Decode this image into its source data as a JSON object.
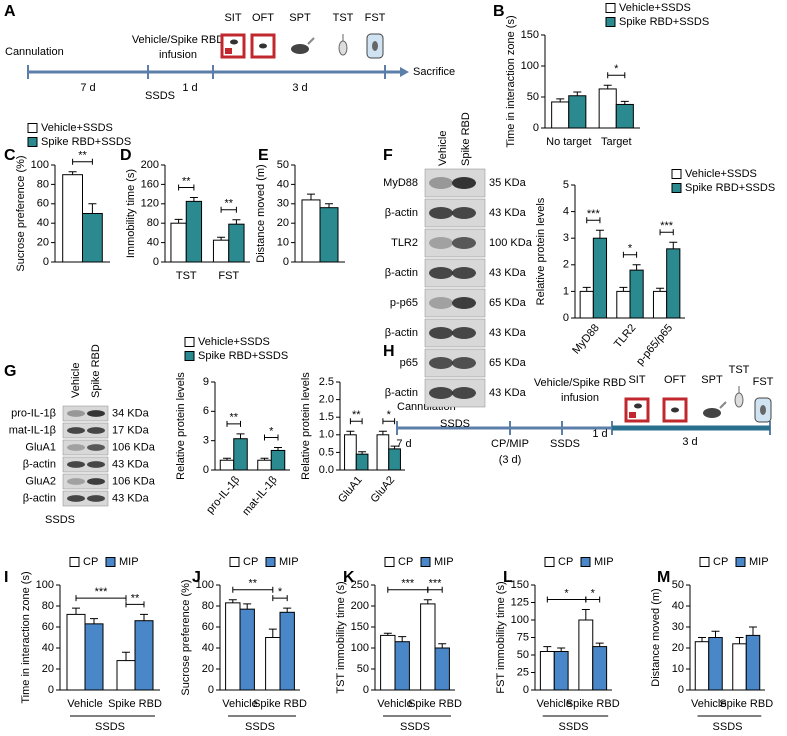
{
  "panel_letters": [
    "A",
    "B",
    "C",
    "D",
    "E",
    "F",
    "G",
    "H",
    "I",
    "J",
    "K",
    "L",
    "M"
  ],
  "timelines": [
    {
      "start": "Cannulation",
      "infusion": [
        "Vehicle/Spike RBD",
        "infusion"
      ],
      "stress": "SSDS",
      "tests": [
        "SIT",
        "OFT",
        "SPT",
        "TST",
        "FST"
      ],
      "intervals": [
        "7 d",
        "1 d",
        "3 d"
      ],
      "end": "Sacrifice"
    },
    {
      "start": "Cannulation",
      "treatment": "CP/MIP",
      "treatment_duration": "(3 d)",
      "infusion": [
        "Vehicle/Spike RBD",
        "infusion"
      ],
      "stress": "SSDS",
      "tests": [
        "SIT",
        "OFT",
        "SPT",
        "TST",
        "FST"
      ],
      "intervals": [
        "7 d",
        "1 d",
        "3 d"
      ]
    }
  ],
  "blots": [
    {
      "lanes": [
        "Vehicle",
        "Spike RBD"
      ],
      "rows": [
        {
          "protein": "MyD88",
          "size": "35 KDa"
        },
        {
          "protein": "β-actin",
          "size": "43 KDa"
        },
        {
          "protein": "TLR2",
          "size": "100 KDa"
        },
        {
          "protein": "β-actin",
          "size": "43 KDa"
        },
        {
          "protein": "p-p65",
          "size": "65 KDa"
        },
        {
          "protein": "β-actin",
          "size": "43 KDa"
        },
        {
          "protein": "p65",
          "size": "65 KDa"
        },
        {
          "protein": "β-actin",
          "size": "43 KDa"
        }
      ],
      "condition": "SSDS"
    },
    {
      "lanes": [
        "Vehicle",
        "Spike RBD"
      ],
      "rows": [
        {
          "protein": "pro-IL-1β",
          "size": "34 KDa"
        },
        {
          "protein": "mat-IL-1β",
          "size": "17 KDa"
        },
        {
          "protein": "GluA1",
          "size": "106 KDa"
        },
        {
          "protein": "β-actin",
          "size": "43 KDa"
        },
        {
          "protein": "GluA2",
          "size": "106 KDa"
        },
        {
          "protein": "β-actin",
          "size": "43 KDa"
        }
      ],
      "condition": "SSDS"
    }
  ],
  "chart_data": [
    {
      "type": "bar",
      "ylabel": "Time in interaction zone (s)",
      "categories": [
        "No target",
        "Target"
      ],
      "series": [
        {
          "name": "Vehicle+SSDS",
          "color": "#ffffff",
          "values": [
            42,
            63
          ],
          "errors": [
            5,
            6
          ]
        },
        {
          "name": "Spike RBD+SSDS",
          "color": "#2b8a8f",
          "values": [
            52,
            38
          ],
          "errors": [
            6,
            5
          ]
        }
      ],
      "ylim": [
        0,
        150
      ],
      "yticks": [
        0,
        50,
        100,
        150
      ],
      "legend": true,
      "significance": [
        {
          "label": "*",
          "bars": [
            [
              1,
              0
            ],
            [
              1,
              1
            ]
          ]
        }
      ]
    },
    {
      "type": "bar",
      "ylabel": "Sucrose preference (%)",
      "categories": [
        null
      ],
      "series": [
        {
          "name": "Vehicle+SSDS",
          "color": "#ffffff",
          "values": [
            90
          ],
          "errors": [
            3
          ]
        },
        {
          "name": "Spike RBD+SSDS",
          "color": "#2b8a8f",
          "values": [
            50
          ],
          "errors": [
            10
          ]
        }
      ],
      "ylim": [
        0,
        100
      ],
      "yticks": [
        0,
        20,
        40,
        60,
        80,
        100
      ],
      "legend": true,
      "significance": [
        {
          "label": "**",
          "bars": [
            [
              0,
              0
            ],
            [
              0,
              1
            ]
          ]
        }
      ]
    },
    {
      "type": "bar",
      "ylabel": "Immobility time (s)",
      "categories": [
        "TST",
        "FST"
      ],
      "series": [
        {
          "name": "Vehicle+SSDS",
          "color": "#ffffff",
          "values": [
            80,
            45
          ],
          "errors": [
            8,
            6
          ]
        },
        {
          "name": "Spike RBD+SSDS",
          "color": "#2b8a8f",
          "values": [
            125,
            78
          ],
          "errors": [
            8,
            9
          ]
        }
      ],
      "ylim": [
        0,
        200
      ],
      "yticks": [
        0,
        40,
        80,
        120,
        160,
        200
      ],
      "legend": false,
      "significance": [
        {
          "label": "**",
          "bars": [
            [
              0,
              0
            ],
            [
              0,
              1
            ]
          ]
        },
        {
          "label": "**",
          "bars": [
            [
              1,
              0
            ],
            [
              1,
              1
            ]
          ]
        }
      ]
    },
    {
      "type": "bar",
      "ylabel": "Distance moved (m)",
      "categories": [
        null
      ],
      "series": [
        {
          "name": "Vehicle+SSDS",
          "color": "#ffffff",
          "values": [
            32
          ],
          "errors": [
            3
          ]
        },
        {
          "name": "Spike RBD+SSDS",
          "color": "#2b8a8f",
          "values": [
            28
          ],
          "errors": [
            2
          ]
        }
      ],
      "ylim": [
        0,
        50
      ],
      "yticks": [
        0,
        10,
        20,
        30,
        40,
        50
      ],
      "legend": false,
      "significance": []
    },
    {
      "type": "bar",
      "ylabel": "Relative protein levels",
      "categories": [
        "MyD88",
        "TLR2",
        "p-p65/p65"
      ],
      "series": [
        {
          "name": "Vehicle+SSDS",
          "color": "#ffffff",
          "values": [
            1,
            1,
            1
          ],
          "errors": [
            0.15,
            0.15,
            0.12
          ]
        },
        {
          "name": "Spike RBD+SSDS",
          "color": "#2b8a8f",
          "values": [
            3.0,
            1.8,
            2.6
          ],
          "errors": [
            0.3,
            0.2,
            0.25
          ]
        }
      ],
      "ylim": [
        0,
        5
      ],
      "yticks": [
        0,
        1,
        2,
        3,
        4,
        5
      ],
      "legend": true,
      "significance": [
        {
          "label": "***",
          "bars": [
            [
              0,
              0
            ],
            [
              0,
              1
            ]
          ]
        },
        {
          "label": "*",
          "bars": [
            [
              1,
              0
            ],
            [
              1,
              1
            ]
          ]
        },
        {
          "label": "***",
          "bars": [
            [
              2,
              0
            ],
            [
              2,
              1
            ]
          ]
        }
      ]
    },
    {
      "type": "bar",
      "ylabel": "Relative protein levels",
      "categories": [
        "pro-IL-1β",
        "mat-IL-1β"
      ],
      "series": [
        {
          "name": "Vehicle+SSDS",
          "color": "#ffffff",
          "values": [
            1,
            1
          ],
          "errors": [
            0.2,
            0.2
          ]
        },
        {
          "name": "Spike RBD+SSDS",
          "color": "#2b8a8f",
          "values": [
            3.2,
            2.0
          ],
          "errors": [
            0.5,
            0.3
          ]
        }
      ],
      "ylim": [
        0,
        9
      ],
      "yticks": [
        0,
        3,
        6,
        9
      ],
      "legend": true,
      "significance": [
        {
          "label": "**",
          "bars": [
            [
              0,
              0
            ],
            [
              0,
              1
            ]
          ]
        },
        {
          "label": "*",
          "bars": [
            [
              1,
              0
            ],
            [
              1,
              1
            ]
          ]
        }
      ]
    },
    {
      "type": "bar",
      "ylabel": "Relative protein levels",
      "categories": [
        "GluA1",
        "GluA2"
      ],
      "series": [
        {
          "name": "Vehicle+SSDS",
          "color": "#ffffff",
          "values": [
            1,
            1
          ],
          "errors": [
            0.1,
            0.1
          ]
        },
        {
          "name": "Spike RBD+SSDS",
          "color": "#2b8a8f",
          "values": [
            0.45,
            0.6
          ],
          "errors": [
            0.07,
            0.08
          ]
        }
      ],
      "ylim": [
        0,
        2.5
      ],
      "yticks": [
        {
          "value": 0,
          "label": "0.0"
        },
        0.5,
        {
          "value": 1,
          "label": "1.0"
        },
        1.5,
        {
          "value": 2,
          "label": "2.0"
        },
        2.5
      ],
      "legend": false,
      "significance": [
        {
          "label": "**",
          "bars": [
            [
              0,
              0
            ],
            [
              0,
              1
            ]
          ]
        },
        {
          "label": "*",
          "bars": [
            [
              1,
              0
            ],
            [
              1,
              1
            ]
          ]
        }
      ]
    },
    {
      "type": "bar",
      "ylabel": "Time in interaction zone (s)",
      "categories": [
        "Vehicle",
        "Spike RBD"
      ],
      "group_label": "SSDS",
      "series": [
        {
          "name": "CP",
          "color": "#ffffff",
          "values": [
            72,
            28
          ],
          "errors": [
            6,
            8
          ]
        },
        {
          "name": "MIP",
          "color": "#4a87c9",
          "values": [
            63,
            66
          ],
          "errors": [
            5,
            6
          ]
        }
      ],
      "ylim": [
        0,
        100
      ],
      "yticks": [
        0,
        20,
        40,
        60,
        80,
        100
      ],
      "legend": true,
      "significance": [
        {
          "label": "***",
          "bars": [
            [
              0,
              0
            ],
            [
              1,
              0
            ]
          ]
        },
        {
          "label": "**",
          "bars": [
            [
              1,
              0
            ],
            [
              1,
              1
            ]
          ]
        }
      ]
    },
    {
      "type": "bar",
      "ylabel": "Sucrose preference (%)",
      "categories": [
        "Vehicle",
        "Spike RBD"
      ],
      "group_label": "SSDS",
      "series": [
        {
          "name": "CP",
          "color": "#ffffff",
          "values": [
            83,
            50
          ],
          "errors": [
            3,
            8
          ]
        },
        {
          "name": "MIP",
          "color": "#4a87c9",
          "values": [
            77,
            74
          ],
          "errors": [
            5,
            4
          ]
        }
      ],
      "ylim": [
        0,
        100
      ],
      "yticks": [
        0,
        20,
        40,
        60,
        80,
        100
      ],
      "legend": true,
      "significance": [
        {
          "label": "**",
          "bars": [
            [
              0,
              0
            ],
            [
              1,
              0
            ]
          ]
        },
        {
          "label": "*",
          "bars": [
            [
              1,
              0
            ],
            [
              1,
              1
            ]
          ]
        }
      ]
    },
    {
      "type": "bar",
      "ylabel": "TST immobility time (s)",
      "categories": [
        "Vehicle",
        "Spike RBD"
      ],
      "group_label": "SSDS",
      "series": [
        {
          "name": "CP",
          "color": "#ffffff",
          "values": [
            130,
            205
          ],
          "errors": [
            5,
            10
          ]
        },
        {
          "name": "MIP",
          "color": "#4a87c9",
          "values": [
            115,
            100
          ],
          "errors": [
            12,
            10
          ]
        }
      ],
      "ylim": [
        0,
        250
      ],
      "yticks": [
        0,
        50,
        100,
        150,
        200,
        250
      ],
      "legend": true,
      "significance": [
        {
          "label": "***",
          "bars": [
            [
              0,
              0
            ],
            [
              1,
              0
            ]
          ]
        },
        {
          "label": "***",
          "bars": [
            [
              1,
              0
            ],
            [
              1,
              1
            ]
          ]
        }
      ]
    },
    {
      "type": "bar",
      "ylabel": "FST immobility time (s)",
      "categories": [
        "Vehicle",
        "Spike RBD"
      ],
      "group_label": "SSDS",
      "series": [
        {
          "name": "CP",
          "color": "#ffffff",
          "values": [
            55,
            100
          ],
          "errors": [
            7,
            15
          ]
        },
        {
          "name": "MIP",
          "color": "#4a87c9",
          "values": [
            55,
            62
          ],
          "errors": [
            5,
            5
          ]
        }
      ],
      "ylim": [
        0,
        150
      ],
      "yticks": [
        0,
        25,
        50,
        75,
        100,
        125,
        150
      ],
      "legend": true,
      "significance": [
        {
          "label": "*",
          "bars": [
            [
              0,
              0
            ],
            [
              1,
              0
            ]
          ]
        },
        {
          "label": "*",
          "bars": [
            [
              1,
              0
            ],
            [
              1,
              1
            ]
          ]
        }
      ]
    },
    {
      "type": "bar",
      "ylabel": "Distance moved (m)",
      "categories": [
        "Vehicle",
        "Spike RBD"
      ],
      "group_label": "SSDS",
      "series": [
        {
          "name": "CP",
          "color": "#ffffff",
          "values": [
            23,
            22
          ],
          "errors": [
            2,
            3
          ]
        },
        {
          "name": "MIP",
          "color": "#4a87c9",
          "values": [
            25,
            26
          ],
          "errors": [
            3,
            4
          ]
        }
      ],
      "ylim": [
        0,
        50
      ],
      "yticks": [
        0,
        10,
        20,
        30,
        40,
        50
      ],
      "legend": true,
      "significance": []
    }
  ]
}
